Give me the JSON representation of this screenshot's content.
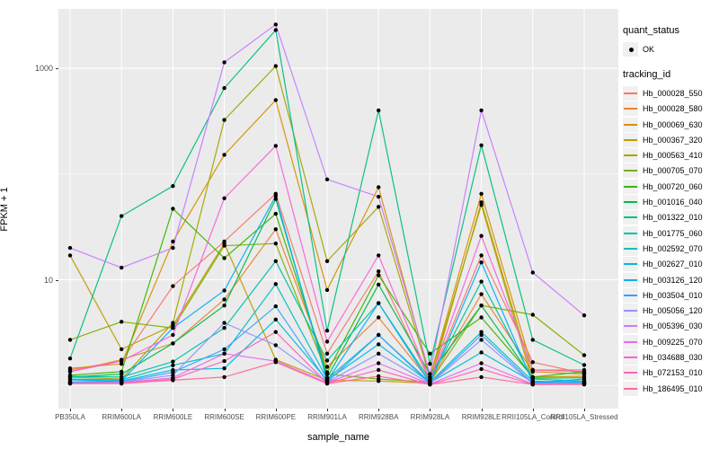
{
  "legend": {
    "quant_status_title": "quant_status",
    "ok_label": "OK",
    "tracking_id_title": "tracking_id"
  },
  "chart_data": {
    "type": "line",
    "title": "",
    "xlabel": "sample_name",
    "ylabel": "FPKM + 1",
    "y_scale": "log10",
    "ylim": [
      0.6,
      3650
    ],
    "grid": "on",
    "legend_position": "right",
    "panel_bg": "#EBEBEB",
    "grid_color": "#FFFFFF",
    "point_color": "#000000",
    "quant_status_ok": "OK",
    "y_ticks": [
      {
        "label": "10",
        "value": 10
      },
      {
        "label": "1000",
        "value": 1000
      }
    ],
    "y_minor_gridlines": [
      1,
      100
    ],
    "categories": [
      "PB350LA",
      "RRIM600LA",
      "RRIM600LE",
      "RRIM600SE",
      "RRIM600PE",
      "RRIM901LA",
      "RRIM928BA",
      "RRIM928LA",
      "RRIM928LE",
      "RRII105LA_Control",
      "RRII105LA_Stressed"
    ],
    "series": [
      {
        "name": "Hb_000028_550",
        "color": "#F8766D",
        "values": [
          1.4,
          1.7,
          8.7,
          23,
          65,
          2.0,
          12,
          1.1,
          17,
          1.66,
          1.3
        ]
      },
      {
        "name": "Hb_000028_580",
        "color": "#EA8331",
        "values": [
          1.35,
          1.75,
          2.5,
          6.5,
          30,
          1.5,
          4.4,
          1.09,
          7.3,
          1.35,
          1.28
        ]
      },
      {
        "name": "Hb_000069_630",
        "color": "#D89000",
        "values": [
          1.45,
          1.6,
          23,
          152,
          500,
          8.0,
          75,
          1.2,
          65,
          1.4,
          1.35
        ]
      },
      {
        "name": "Hb_000367_320",
        "color": "#C09B00",
        "values": [
          17,
          2.2,
          3.7,
          22,
          1.75,
          1.12,
          1.1,
          1.05,
          54,
          1.2,
          1.22
        ]
      },
      {
        "name": "Hb_000563_410",
        "color": "#A3A500",
        "values": [
          1.2,
          1.15,
          3.9,
          325,
          1050,
          15,
          49,
          1.18,
          51,
          1.07,
          1.06
        ]
      },
      {
        "name": "Hb_000705_070",
        "color": "#7CAE00",
        "values": [
          2.7,
          4.0,
          3.5,
          21,
          22,
          1.28,
          1.15,
          1.08,
          5.7,
          4.66,
          1.93
        ]
      },
      {
        "name": "Hb_000720_060",
        "color": "#39B600",
        "values": [
          1.25,
          1.35,
          47,
          16,
          42,
          1.33,
          11,
          2.0,
          4.4,
          1.2,
          1.35
        ]
      },
      {
        "name": "Hb_001016_040",
        "color": "#00BB4E",
        "values": [
          1.2,
          1.28,
          2.5,
          5.7,
          58,
          1.18,
          9.0,
          1.28,
          5.7,
          1.17,
          1.18
        ]
      },
      {
        "name": "Hb_001322_010",
        "color": "#00BF7D",
        "values": [
          1.8,
          40,
          77,
          650,
          2300,
          3.3,
          400,
          1.6,
          187,
          2.7,
          1.56
        ]
      },
      {
        "name": "Hb_001775_060",
        "color": "#00C1A3",
        "values": [
          1.22,
          1.2,
          1.68,
          3.5,
          15,
          1.72,
          6.0,
          1.12,
          9.6,
          1.15,
          1.1
        ]
      },
      {
        "name": "Hb_002592_070",
        "color": "#00BFC4",
        "values": [
          1.15,
          1.13,
          1.55,
          2.0,
          9.1,
          1.15,
          3.0,
          1.07,
          3.2,
          1.1,
          1.06
        ]
      },
      {
        "name": "Hb_002627_010",
        "color": "#00BAE0",
        "values": [
          1.13,
          1.1,
          1.4,
          1.45,
          4.2,
          1.12,
          2.45,
          1.06,
          2.05,
          1.08,
          1.07
        ]
      },
      {
        "name": "Hb_003126_120",
        "color": "#00B0F6",
        "values": [
          1.08,
          1.1,
          3.5,
          7.9,
          62,
          1.1,
          6.0,
          1.05,
          14.6,
          1.06,
          1.15
        ]
      },
      {
        "name": "Hb_003504_010",
        "color": "#35A2FF",
        "values": [
          1.07,
          1.08,
          1.33,
          2.2,
          5.6,
          1.08,
          3.0,
          1.04,
          3.0,
          1.05,
          1.1
        ]
      },
      {
        "name": "Hb_005056_120",
        "color": "#9590FF",
        "values": [
          1.06,
          1.07,
          1.25,
          3.9,
          2.4,
          1.07,
          2.0,
          1.04,
          2.7,
          1.04,
          1.05
        ]
      },
      {
        "name": "Hb_005396_030",
        "color": "#C77CFF",
        "values": [
          20,
          13,
          20,
          1140,
          2600,
          89,
          61,
          1.28,
          400,
          11.7,
          4.6
        ]
      },
      {
        "name": "Hb_009225_070",
        "color": "#E76BF3",
        "values": [
          1.05,
          1.06,
          1.18,
          2.0,
          1.7,
          1.06,
          1.62,
          1.03,
          1.62,
          1.03,
          1.04
        ]
      },
      {
        "name": "Hb_034688_030",
        "color": "#FA62DB",
        "values": [
          1.35,
          1.7,
          3.0,
          59,
          185,
          2.6,
          17,
          1.12,
          26,
          1.4,
          1.4
        ]
      },
      {
        "name": "Hb_072153_010",
        "color": "#FF62BC",
        "values": [
          1.05,
          1.05,
          1.15,
          1.7,
          3.2,
          1.05,
          1.4,
          1.02,
          1.43,
          1.02,
          1.03
        ]
      },
      {
        "name": "Hb_186495_010",
        "color": "#FF6A98",
        "values": [
          1.04,
          1.04,
          1.12,
          1.2,
          1.66,
          1.04,
          1.22,
          1.02,
          1.2,
          1.02,
          1.02
        ]
      }
    ]
  }
}
